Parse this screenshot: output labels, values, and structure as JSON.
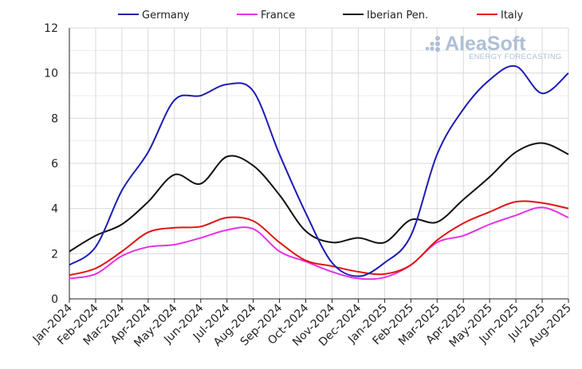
{
  "chart_data": {
    "type": "line",
    "title": "",
    "xlabel": "",
    "ylabel": "",
    "ylim": [
      0,
      12
    ],
    "yticks": [
      0,
      2,
      4,
      6,
      8,
      10,
      12
    ],
    "grid": true,
    "legend_position": "top",
    "categories": [
      "Jan-2024",
      "Feb-2024",
      "Mar-2024",
      "Apr-2024",
      "May-2024",
      "Jun-2024",
      "Jul-2024",
      "Aug-2024",
      "Sep-2024",
      "Oct-2024",
      "Nov-2024",
      "Dec-2024",
      "Jan-2025",
      "Feb-2025",
      "Mar-2025",
      "Apr-2025",
      "May-2025",
      "Jun-2025",
      "Jul-2025",
      "Aug-2025"
    ],
    "series": [
      {
        "name": "Germany",
        "color": "#1c1cb4",
        "values": [
          1.5,
          2.3,
          4.8,
          6.5,
          8.8,
          9.0,
          9.5,
          9.2,
          6.4,
          3.8,
          1.6,
          1.0,
          1.6,
          2.8,
          6.4,
          8.4,
          9.7,
          10.3,
          9.1,
          10.0
        ]
      },
      {
        "name": "France",
        "color": "#e830e8",
        "values": [
          0.9,
          1.1,
          1.9,
          2.3,
          2.4,
          2.7,
          3.05,
          3.1,
          2.1,
          1.65,
          1.2,
          0.9,
          0.95,
          1.5,
          2.5,
          2.8,
          3.3,
          3.7,
          4.05,
          3.6
        ]
      },
      {
        "name": "Iberian Pen.",
        "color": "#111111",
        "values": [
          2.1,
          2.8,
          3.3,
          4.3,
          5.5,
          5.1,
          6.3,
          5.9,
          4.6,
          3.0,
          2.5,
          2.7,
          2.5,
          3.5,
          3.4,
          4.4,
          5.4,
          6.5,
          6.9,
          6.4
        ]
      },
      {
        "name": "Italy",
        "color": "#e01414",
        "values": [
          1.05,
          1.35,
          2.1,
          2.95,
          3.15,
          3.2,
          3.6,
          3.45,
          2.5,
          1.7,
          1.45,
          1.2,
          1.1,
          1.5,
          2.6,
          3.35,
          3.85,
          4.3,
          4.25,
          4.0
        ]
      }
    ]
  },
  "watermark": {
    "brand": "AleaSoft",
    "tagline": "ENERGY FORECASTING",
    "color": "#aebfd6"
  },
  "colors": {
    "grid": "#d9d9d9",
    "axis": "#222222",
    "background": "#ffffff"
  }
}
